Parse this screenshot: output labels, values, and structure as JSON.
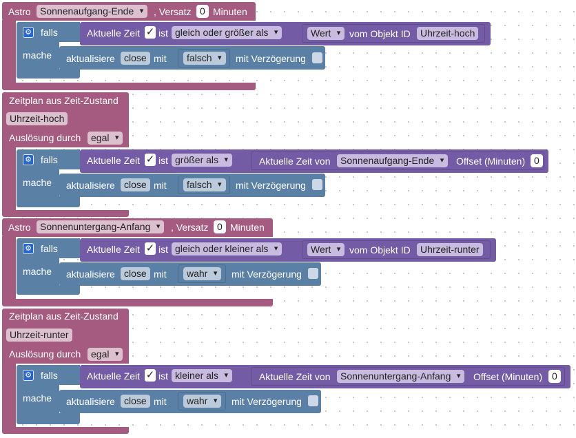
{
  "blocks": [
    {
      "astro_label": "Astro",
      "astro_event": "Sonnenaufgang-Ende",
      "versatz_label": ", Versatz",
      "versatz_value": "0",
      "minuten_label": "Minuten",
      "if_label": "falls",
      "do_label": "mache",
      "cond_left": "Aktuelle Zeit",
      "ist_label": "ist",
      "operator": "gleich oder größer als",
      "value_kind": "Wert",
      "vom_objekt_label": "vom Objekt ID",
      "object_id": "Uhrzeit-hoch",
      "update_label": "aktualisiere",
      "update_target": "close",
      "mit_label": "mit",
      "update_value": "falsch",
      "delay_label": "mit Verzögerung"
    },
    {
      "title": "Zeitplan aus Zeit-Zustand",
      "state_id": "Uhrzeit-hoch",
      "trigger_label": "Auslösung durch",
      "trigger_value": "egal",
      "if_label": "falls",
      "do_label": "mache",
      "cond_left": "Aktuelle Zeit",
      "ist_label": "ist",
      "operator": "größer als",
      "right_label": "Aktuelle Zeit von",
      "right_event": "Sonnenaufgang-Ende",
      "offset_label": "Offset (Minuten)",
      "offset_value": "0",
      "update_label": "aktualisiere",
      "update_target": "close",
      "mit_label": "mit",
      "update_value": "falsch",
      "delay_label": "mit Verzögerung"
    },
    {
      "astro_label": "Astro",
      "astro_event": "Sonnenuntergang-Anfang",
      "versatz_label": ", Versatz",
      "versatz_value": "0",
      "minuten_label": "Minuten",
      "if_label": "falls",
      "do_label": "mache",
      "cond_left": "Aktuelle Zeit",
      "ist_label": "ist",
      "operator": "gleich oder kleiner als",
      "value_kind": "Wert",
      "vom_objekt_label": "vom Objekt ID",
      "object_id": "Uhrzeit-runter",
      "update_label": "aktualisiere",
      "update_target": "close",
      "mit_label": "mit",
      "update_value": "wahr",
      "delay_label": "mit Verzögerung"
    },
    {
      "title": "Zeitplan aus Zeit-Zustand",
      "state_id": "Uhrzeit-runter",
      "trigger_label": "Auslösung durch",
      "trigger_value": "egal",
      "if_label": "falls",
      "do_label": "mache",
      "cond_left": "Aktuelle Zeit",
      "ist_label": "ist",
      "operator": "kleiner als",
      "right_label": "Aktuelle Zeit von",
      "right_event": "Sonnenuntergang-Anfang",
      "offset_label": "Offset (Minuten)",
      "offset_value": "0",
      "update_label": "aktualisiere",
      "update_target": "close",
      "mit_label": "mit",
      "update_value": "wahr",
      "delay_label": "mit Verzögerung"
    }
  ],
  "colors": {
    "trigger_block": "#a55b80",
    "logic_block": "#5b80a5",
    "compare_block": "#745ba5",
    "gear": "#2a67c8"
  },
  "icons": {
    "mutator": "gear-icon",
    "checkbox_checked": "check-icon"
  }
}
